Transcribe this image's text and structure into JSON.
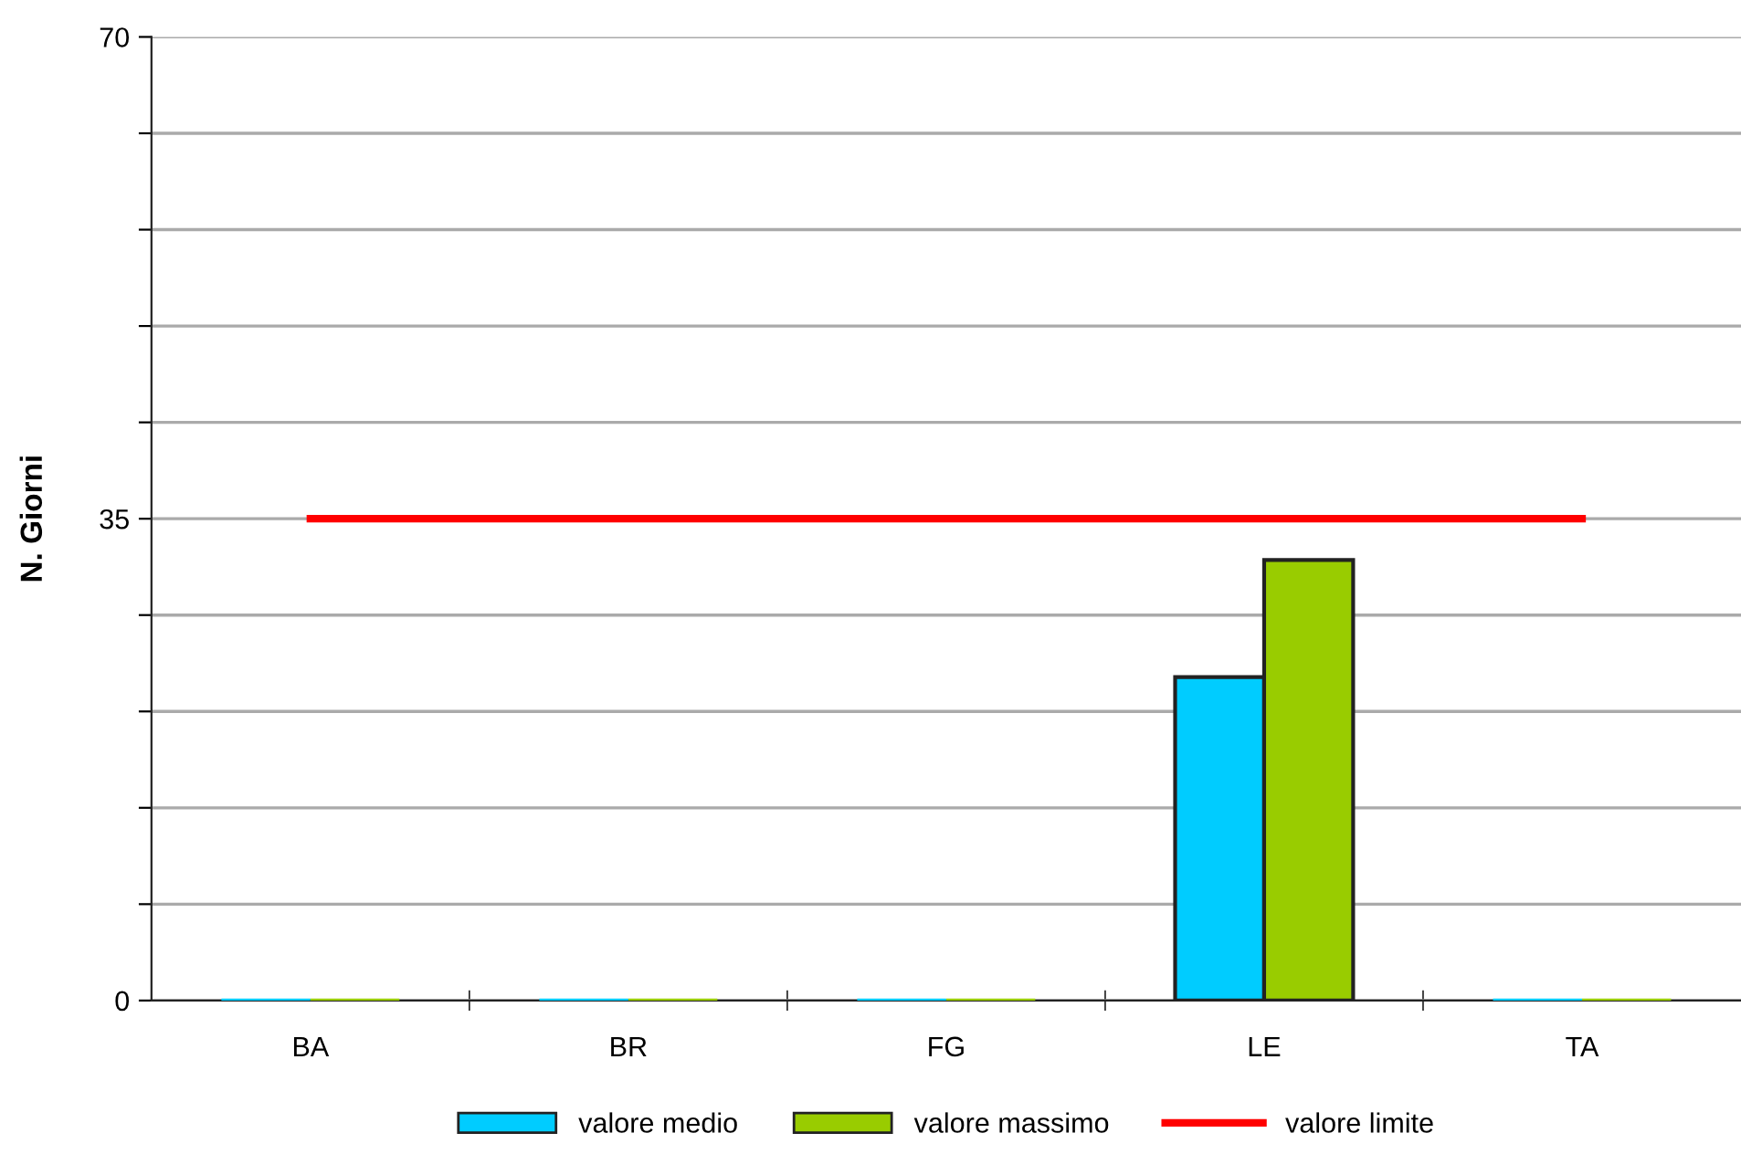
{
  "chart_data": {
    "type": "bar",
    "ylabel": "N. Giorni",
    "categories": [
      "BA",
      "BR",
      "FG",
      "LE",
      "TA"
    ],
    "series": [
      {
        "name": "valore medio",
        "color": "#00ccff",
        "values": [
          0,
          0,
          0,
          23.5,
          0
        ]
      },
      {
        "name": "valore massimo",
        "color": "#99cc00",
        "values": [
          0,
          0,
          0,
          32,
          0
        ]
      },
      {
        "name": "valore limite",
        "color": "#ff0000",
        "type": "line",
        "values": [
          35,
          35,
          35,
          35,
          35
        ]
      }
    ],
    "ylim": [
      0,
      70
    ],
    "yticks": [
      0,
      {
        "value": 7,
        "label": null
      },
      {
        "value": 14,
        "label": null
      },
      {
        "value": 21,
        "label": null
      },
      {
        "value": 28,
        "label": null
      },
      35,
      {
        "value": 42,
        "label": null
      },
      {
        "value": 49,
        "label": null
      },
      {
        "value": 56,
        "label": null
      },
      {
        "value": 63,
        "label": null
      },
      70
    ],
    "grid": "y",
    "legend": "bottom",
    "marker": "none",
    "line_style": "solid"
  }
}
